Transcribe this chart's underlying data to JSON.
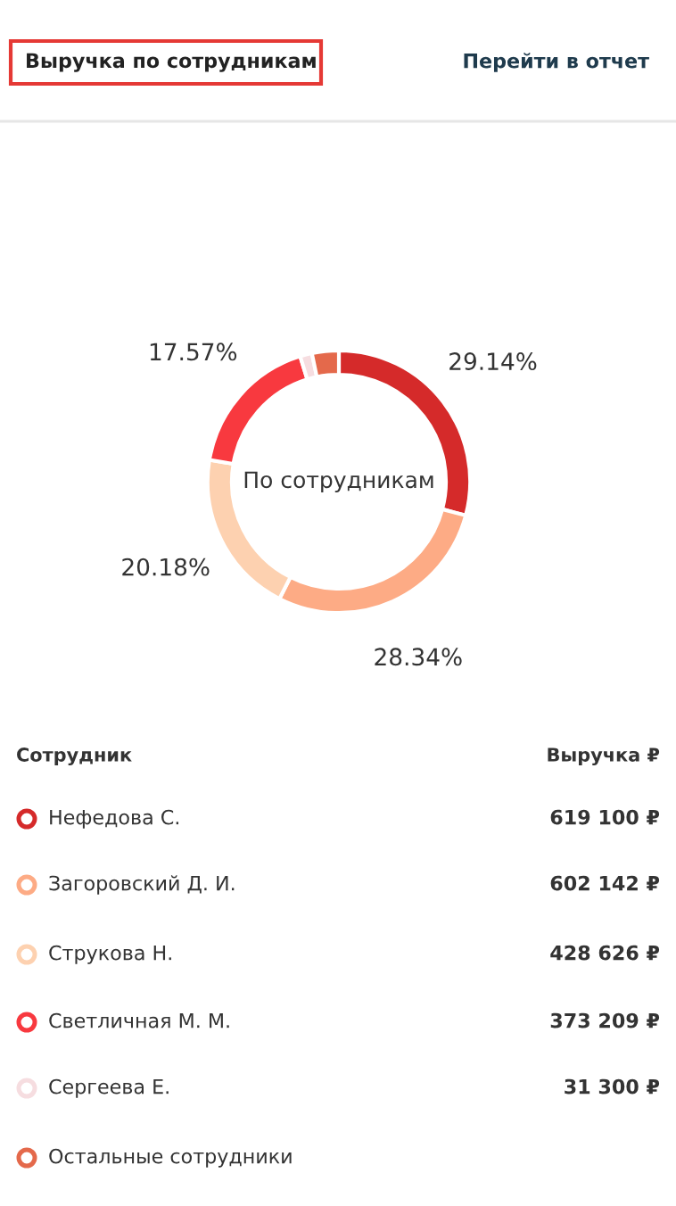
{
  "chart_data": {
    "type": "donut",
    "title": "Выручка по сотрудникам",
    "categories": [
      "Нефедова С.",
      "Загоровский Д. И.",
      "Струкова Н.",
      "Светличная М. М.",
      "Сергеева Е.",
      "Остальные сотрудники"
    ],
    "values": [
      29.14,
      28.34,
      20.18,
      17.57,
      1.47,
      3.3
    ],
    "colors": [
      "#d52a2a",
      "#fdab85",
      "#fdd1b0",
      "#f8393f",
      "#f6dde0",
      "#e4694b"
    ],
    "value_labels": [
      "29.14%",
      "28.34%",
      "20.18%",
      "17.57%",
      null,
      null
    ],
    "legend": "bottom",
    "annotations": [
      "Перейти в отчет",
      "По сотрудникам",
      "Сотрудник",
      "Выручка ₽",
      "619 100 ₽",
      "602 142 ₽",
      "428 626 ₽",
      "373 209 ₽",
      "31 300 ₽"
    ]
  }
}
